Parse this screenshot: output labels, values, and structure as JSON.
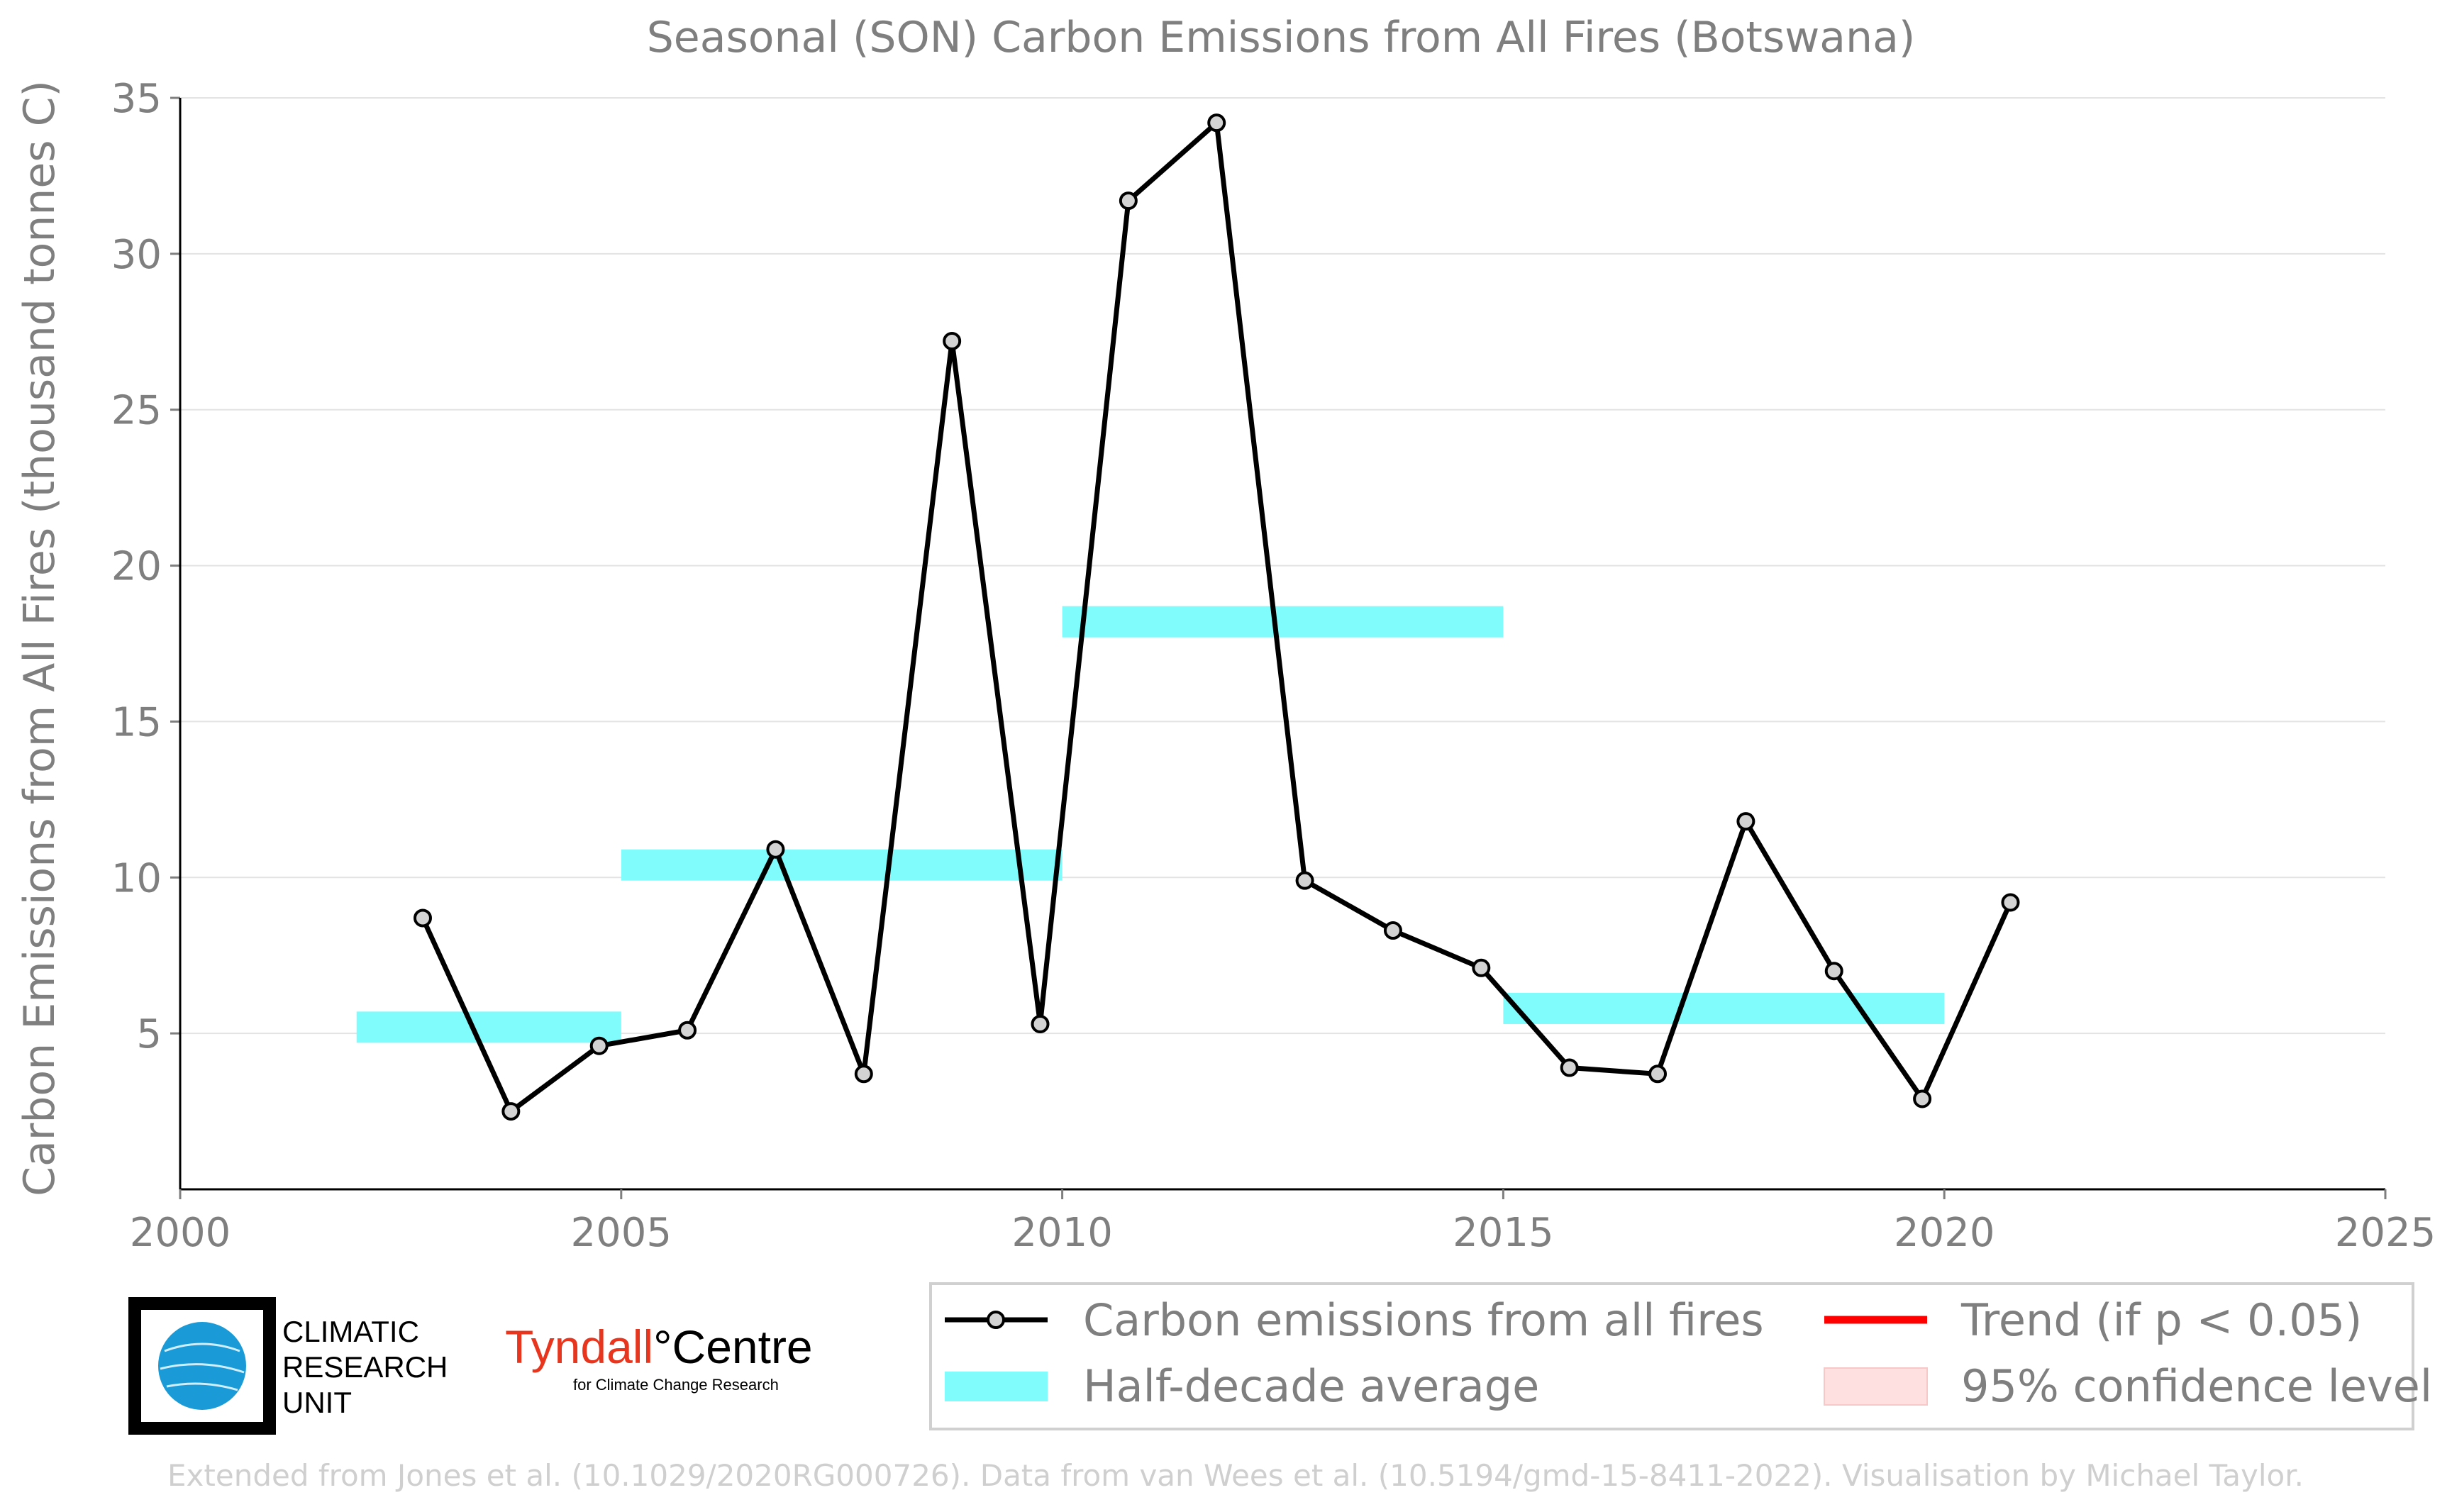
{
  "chart_data": {
    "type": "line",
    "title": "Seasonal (SON) Carbon Emissions from All Fires (Botswana)",
    "xlabel": "",
    "ylabel": "Carbon Emissions from All Fires (thousand tonnes C)",
    "xlim": [
      2000,
      2025
    ],
    "ylim": [
      0,
      35
    ],
    "x_ticks": [
      2000,
      2005,
      2010,
      2015,
      2020,
      2025
    ],
    "y_ticks": [
      5,
      10,
      15,
      20,
      25,
      30,
      35
    ],
    "grid": "horizontal",
    "legend_position": "bottom-right",
    "series": [
      {
        "name": "Carbon emissions from all fires",
        "color": "#000000",
        "marker_color": "#d3d3d3",
        "x": [
          2002.75,
          2003.75,
          2004.75,
          2005.75,
          2006.75,
          2007.75,
          2008.75,
          2009.75,
          2010.75,
          2011.75,
          2012.75,
          2013.75,
          2014.75,
          2015.75,
          2016.75,
          2017.75,
          2018.75,
          2019.75,
          2020.75
        ],
        "y": [
          8.7,
          2.5,
          4.6,
          5.1,
          10.9,
          3.7,
          27.2,
          5.3,
          31.7,
          34.2,
          9.9,
          8.3,
          7.1,
          3.9,
          3.7,
          11.8,
          7.0,
          2.9,
          9.2
        ]
      }
    ],
    "half_decade_averages": {
      "name": "Half-decade average",
      "color": "#7ffcfb",
      "segments": [
        {
          "x_start": 2002,
          "x_end": 2005,
          "y": 5.2
        },
        {
          "x_start": 2005,
          "x_end": 2010,
          "y": 10.4
        },
        {
          "x_start": 2010,
          "x_end": 2015,
          "y": 18.2
        },
        {
          "x_start": 2015,
          "x_end": 2020,
          "y": 5.8
        }
      ]
    },
    "legend": [
      {
        "label": "Carbon emissions from all fires",
        "kind": "line-marker",
        "color": "#000000"
      },
      {
        "label": "Half-decade average",
        "kind": "band",
        "color": "#7ffcfb"
      },
      {
        "label": "Trend (if p < 0.05)",
        "kind": "line",
        "color": "#ff0000"
      },
      {
        "label": "95% confidence level",
        "kind": "patch",
        "color": "#ffe0e0"
      }
    ]
  },
  "logos": {
    "cru_lines": [
      "CLIMATIC",
      "RESEARCH",
      "UNIT"
    ],
    "tyndall_name": "Tyndall",
    "tyndall_degree": "°",
    "tyndall_centre": "Centre",
    "tyndall_sub": "for Climate Change Research",
    "tyndall_color": "#e8361e"
  },
  "footer": "Extended from Jones et al. (10.1029/2020RG000726). Data from van Wees et al. (10.5194/gmd-15-8411-2022). Visualisation by Michael Taylor."
}
